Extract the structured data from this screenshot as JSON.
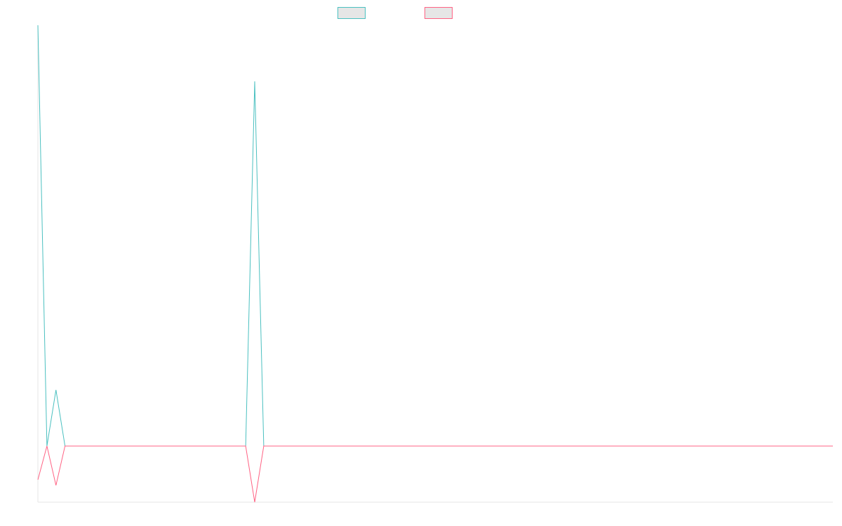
{
  "chart_data": {
    "type": "line",
    "title": "",
    "xlabel": "",
    "ylabel": "",
    "x": [
      0,
      1,
      2,
      3,
      4,
      5,
      6,
      7,
      8,
      9,
      10,
      11,
      12,
      13,
      14,
      15,
      16,
      17,
      18,
      19,
      20,
      21,
      22,
      23,
      24,
      25,
      26,
      27,
      28,
      29,
      30,
      31,
      32,
      33,
      34,
      35,
      36,
      37,
      38,
      39,
      40,
      41,
      42,
      43,
      44,
      45,
      46,
      47,
      48,
      49,
      50,
      51,
      52,
      53,
      54,
      55,
      56,
      57,
      58,
      59,
      60,
      61,
      62,
      63,
      64,
      65,
      66,
      67,
      68,
      69,
      70,
      71,
      72,
      73,
      74,
      75,
      76,
      77,
      78,
      79,
      80,
      81,
      82,
      83,
      84,
      85,
      86,
      87,
      88
    ],
    "series": [
      {
        "name": "",
        "color": "#4bc0c0",
        "values": [
          7.5,
          0,
          1,
          0,
          0,
          0,
          0,
          0,
          0,
          0,
          0,
          0,
          0,
          0,
          0,
          0,
          0,
          0,
          0,
          0,
          0,
          0,
          0,
          0,
          6.5,
          0,
          0,
          0,
          0,
          0,
          0,
          0,
          0,
          0,
          0,
          0,
          0,
          0,
          0,
          0,
          0,
          0,
          0,
          0,
          0,
          0,
          0,
          0,
          0,
          0,
          0,
          0,
          0,
          0,
          0,
          0,
          0,
          0,
          0,
          0,
          0,
          0,
          0,
          0,
          0,
          0,
          0,
          0,
          0,
          0,
          0,
          0,
          0,
          0,
          0,
          0,
          0,
          0,
          0,
          0,
          0,
          0,
          0,
          0,
          0,
          0,
          0,
          0,
          0
        ]
      },
      {
        "name": "",
        "color": "#ff6384",
        "values": [
          -0.6,
          0,
          -0.7,
          0,
          0,
          0,
          0,
          0,
          0,
          0,
          0,
          0,
          0,
          0,
          0,
          0,
          0,
          0,
          0,
          0,
          0,
          0,
          0,
          0,
          -1,
          0,
          0,
          0,
          0,
          0,
          0,
          0,
          0,
          0,
          0,
          0,
          0,
          0,
          0,
          0,
          0,
          0,
          0,
          0,
          0,
          0,
          0,
          0,
          0,
          0,
          0,
          0,
          0,
          0,
          0,
          0,
          0,
          0,
          0,
          0,
          0,
          0,
          0,
          0,
          0,
          0,
          0,
          0,
          0,
          0,
          0,
          0,
          0,
          0,
          0,
          0,
          0,
          0,
          0,
          0,
          0,
          0,
          0,
          0,
          0,
          0,
          0,
          0,
          0
        ]
      }
    ],
    "ylim": [
      -1,
      7.5
    ],
    "grid": false,
    "legend": "top-center"
  }
}
